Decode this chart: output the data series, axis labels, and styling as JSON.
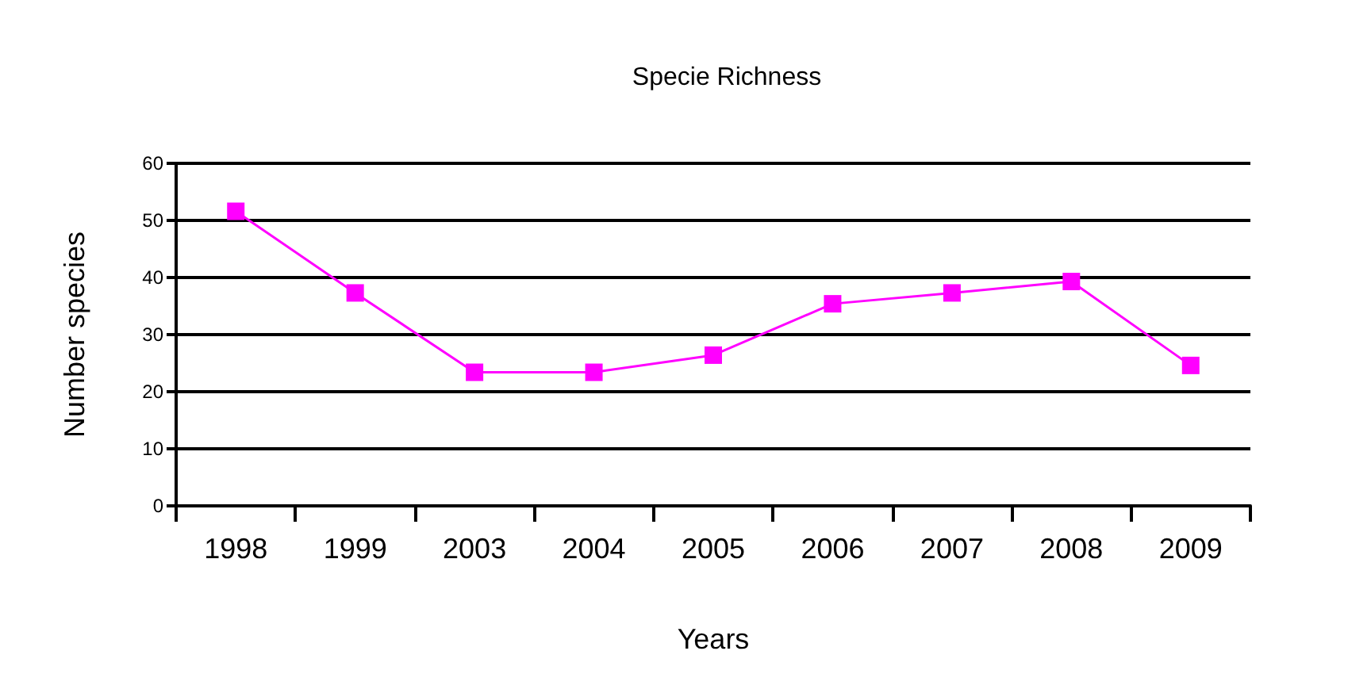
{
  "chart_data": {
    "type": "line",
    "title": "Specie Richness",
    "xlabel": "Years",
    "ylabel": "Number species",
    "categories": [
      "1998",
      "1999",
      "2003",
      "2004",
      "2005",
      "2006",
      "2007",
      "2008",
      "2009"
    ],
    "series": [
      {
        "color": "#ff00ff",
        "values": [
          51.6,
          37.3,
          23.4,
          23.4,
          26.4,
          35.4,
          37.3,
          39.3,
          24.6
        ]
      }
    ],
    "ylim": [
      0,
      60
    ],
    "yticks": [
      0,
      10,
      20,
      30,
      40,
      50,
      60
    ],
    "grid": "y",
    "marker": "square",
    "line_style": "solid"
  }
}
